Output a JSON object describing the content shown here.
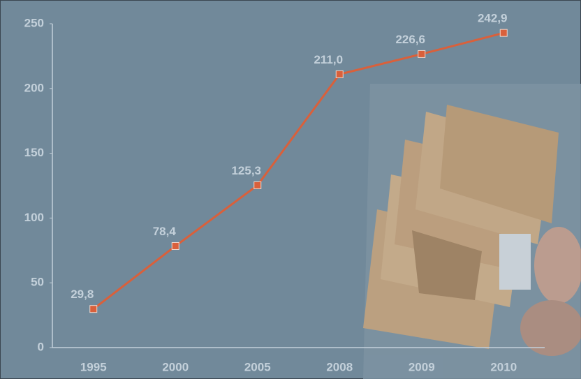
{
  "chart_data": {
    "type": "line",
    "categories": [
      "1995",
      "2000",
      "2005",
      "2008",
      "2009",
      "2010"
    ],
    "values": [
      29.8,
      78.4,
      125.3,
      211.0,
      226.6,
      242.9
    ],
    "value_labels": [
      "29,8",
      "78,4",
      "125,3",
      "211,0",
      "226,6",
      "242,9"
    ],
    "color": "#d9603b",
    "ylim": [
      0,
      250
    ],
    "yticks": [
      0,
      50,
      100,
      150,
      200,
      250
    ]
  }
}
